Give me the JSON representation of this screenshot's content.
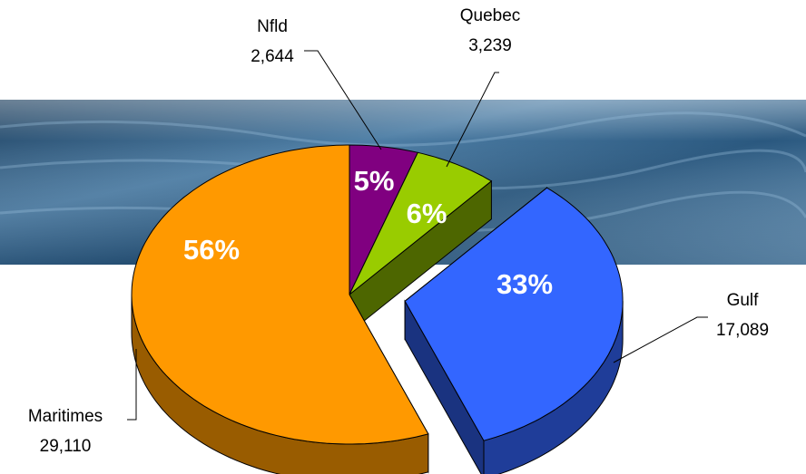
{
  "chart_data": {
    "type": "pie3d",
    "categories": [
      "Nfld",
      "Quebec",
      "Gulf",
      "Maritimes"
    ],
    "values": [
      2644,
      3239,
      17089,
      29110
    ],
    "value_labels": [
      "2,644",
      "3,239",
      "17,089",
      "29,110"
    ],
    "percent_labels": [
      "5%",
      "6%",
      "33%",
      "56%"
    ],
    "colors": [
      "#800080",
      "#99cc00",
      "#3366ff",
      "#ff9900"
    ],
    "exploded": [
      "Gulf"
    ]
  }
}
